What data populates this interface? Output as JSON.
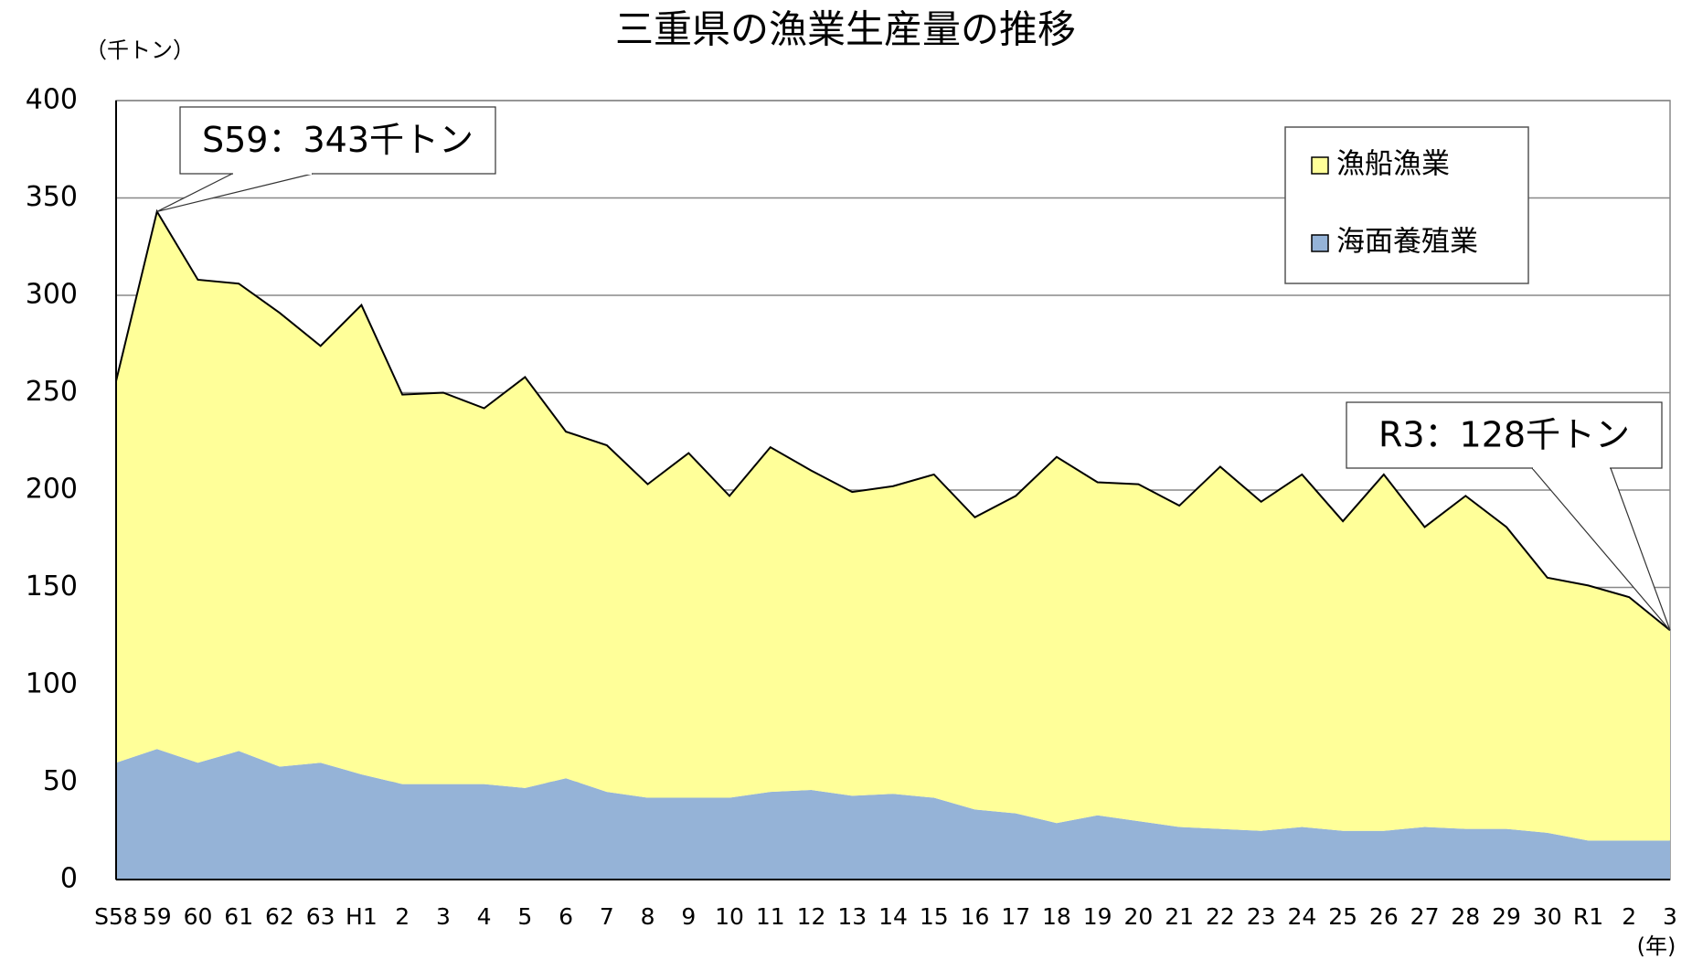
{
  "chart_data": {
    "type": "stacked_area",
    "title": "三重県の漁業生産量の推移",
    "y_label": "（千トン）",
    "x_label": "(年)",
    "categories": [
      "S58",
      "59",
      "60",
      "61",
      "62",
      "63",
      "H1",
      "2",
      "3",
      "4",
      "5",
      "6",
      "7",
      "8",
      "9",
      "10",
      "11",
      "12",
      "13",
      "14",
      "15",
      "16",
      "17",
      "18",
      "19",
      "20",
      "21",
      "22",
      "23",
      "24",
      "25",
      "26",
      "27",
      "28",
      "29",
      "30",
      "R1",
      "2",
      "3"
    ],
    "series": [
      {
        "name": "海面養殖業",
        "color": "#95b3d7",
        "values": [
          60,
          67,
          60,
          66,
          58,
          60,
          54,
          49,
          49,
          49,
          47,
          52,
          45,
          42,
          42,
          42,
          45,
          46,
          43,
          44,
          42,
          36,
          34,
          29,
          33,
          30,
          27,
          26,
          25,
          27,
          25,
          25,
          27,
          26,
          26,
          24,
          20,
          20,
          20
        ]
      },
      {
        "name": "漁船漁業",
        "color": "#ffff99",
        "values": [
          196,
          276,
          248,
          240,
          233,
          214,
          241,
          200,
          201,
          193,
          211,
          178,
          178,
          161,
          177,
          155,
          177,
          164,
          156,
          158,
          166,
          150,
          163,
          188,
          171,
          173,
          165,
          186,
          169,
          181,
          159,
          183,
          154,
          171,
          155,
          131,
          131,
          125,
          108
        ]
      }
    ],
    "annotations": [
      "S59：343千トン",
      "R3：128千トン"
    ],
    "ylim": [
      0,
      400
    ],
    "yticks": [
      0,
      50,
      100,
      150,
      200,
      250,
      300,
      350,
      400
    ],
    "grid": true,
    "legend": "top-right"
  }
}
